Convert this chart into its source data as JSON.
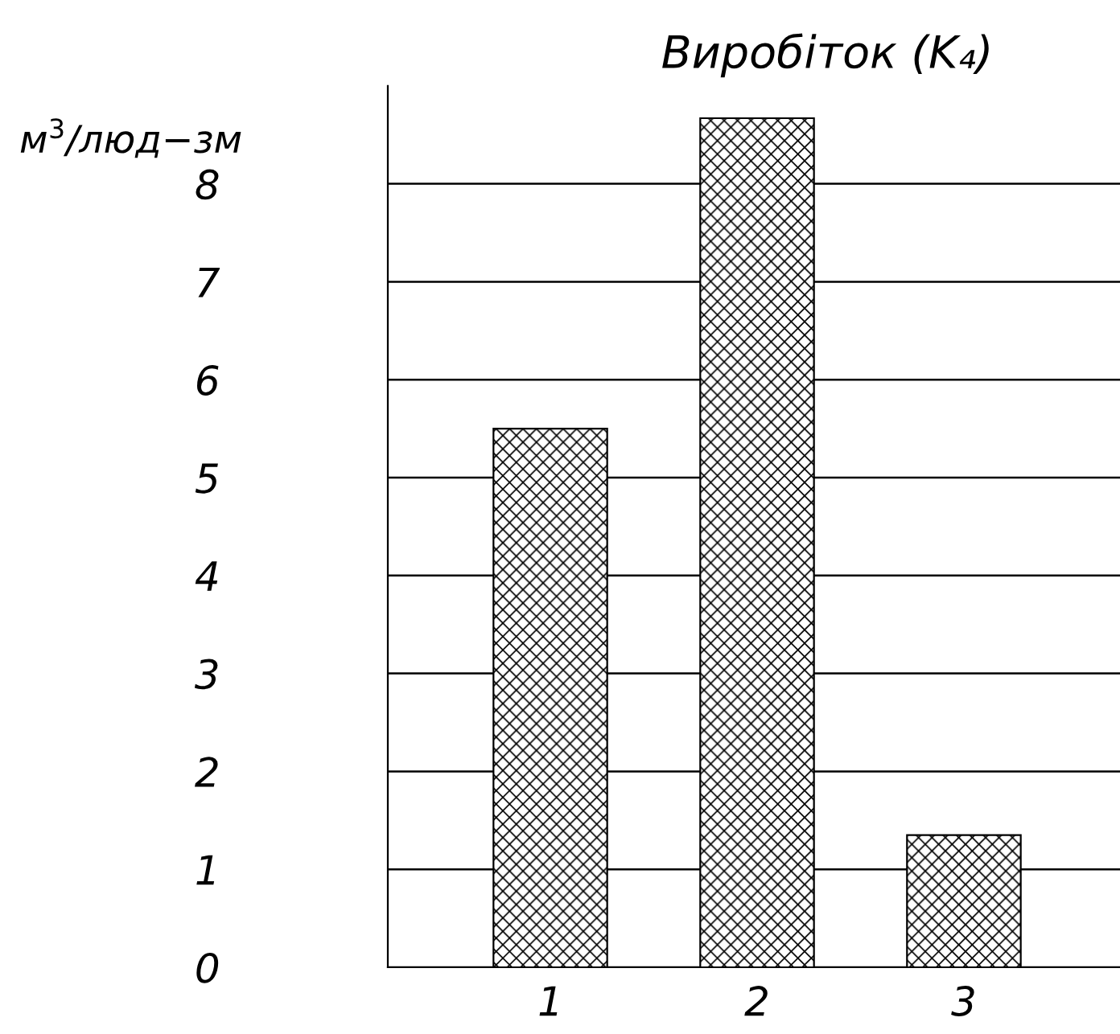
{
  "chart_data": {
    "type": "bar",
    "title": "Виробіток (K₄)",
    "ylabel": "м$^{3}$/люд−зм",
    "categories": [
      "1",
      "2",
      "3"
    ],
    "values": [
      5.5,
      8.67,
      1.35
    ],
    "color": "#000000",
    "ylim": [
      0,
      9
    ],
    "yticks": [
      0,
      1,
      2,
      3,
      4,
      5,
      6,
      7,
      8
    ],
    "grid": "y"
  }
}
